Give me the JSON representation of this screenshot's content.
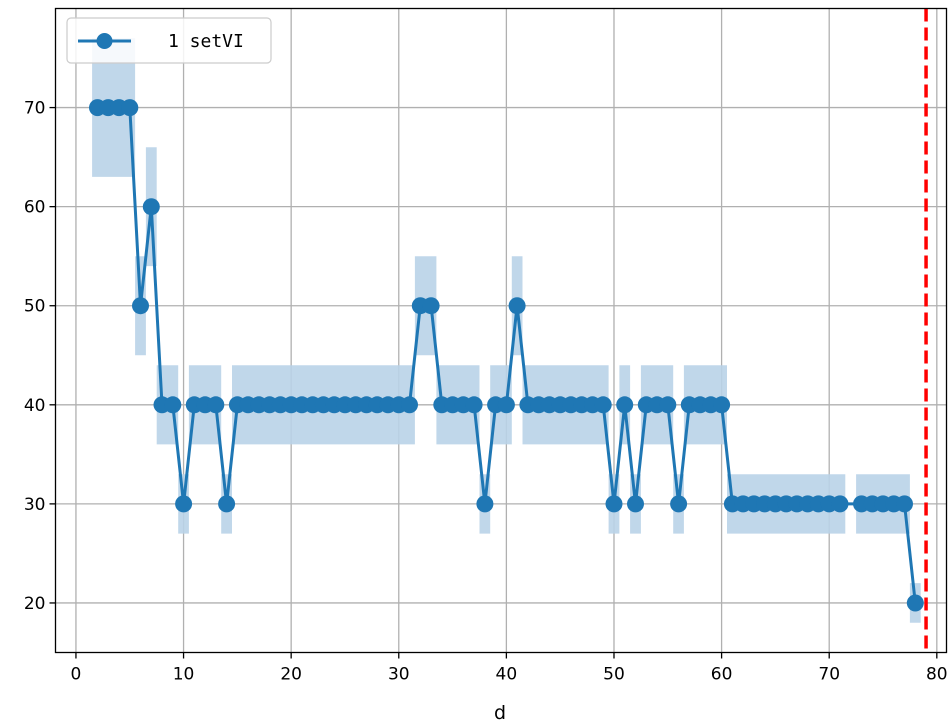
{
  "chart_data": {
    "type": "line",
    "title": "",
    "xlabel": "d",
    "ylabel": "",
    "xlim": [
      -1.9,
      80.9
    ],
    "ylim": [
      15,
      80
    ],
    "xticks": [
      0,
      10,
      20,
      30,
      40,
      50,
      60,
      70,
      80
    ],
    "yticks": [
      20,
      30,
      40,
      50,
      60,
      70
    ],
    "grid": true,
    "legend": {
      "position": "top-left",
      "entries": [
        "1 setVI"
      ]
    },
    "vline": {
      "x": 79,
      "color": "#ff0000",
      "style": "dashed"
    },
    "colors": {
      "series": "#1f77b4",
      "band": "#b9d3e8",
      "vline": "#ff0000",
      "grid": "#b0b0b0"
    },
    "series": [
      {
        "name": "1 setVI",
        "points": [
          [
            2,
            70
          ],
          [
            3,
            70
          ],
          [
            4,
            70
          ],
          [
            5,
            70
          ],
          [
            6,
            50
          ],
          [
            7,
            60
          ],
          [
            8,
            40
          ],
          [
            9,
            40
          ],
          [
            10,
            30
          ],
          [
            11,
            40
          ],
          [
            12,
            40
          ],
          [
            13,
            40
          ],
          [
            14,
            30
          ],
          [
            15,
            40
          ],
          [
            16,
            40
          ],
          [
            17,
            40
          ],
          [
            18,
            40
          ],
          [
            19,
            40
          ],
          [
            20,
            40
          ],
          [
            21,
            40
          ],
          [
            22,
            40
          ],
          [
            23,
            40
          ],
          [
            24,
            40
          ],
          [
            25,
            40
          ],
          [
            26,
            40
          ],
          [
            27,
            40
          ],
          [
            28,
            40
          ],
          [
            29,
            40
          ],
          [
            30,
            40
          ],
          [
            31,
            40
          ],
          [
            32,
            50
          ],
          [
            33,
            50
          ],
          [
            34,
            40
          ],
          [
            35,
            40
          ],
          [
            36,
            40
          ],
          [
            37,
            40
          ],
          [
            38,
            30
          ],
          [
            39,
            40
          ],
          [
            40,
            40
          ],
          [
            41,
            50
          ],
          [
            42,
            40
          ],
          [
            43,
            40
          ],
          [
            44,
            40
          ],
          [
            45,
            40
          ],
          [
            46,
            40
          ],
          [
            47,
            40
          ],
          [
            48,
            40
          ],
          [
            49,
            40
          ],
          [
            50,
            30
          ],
          [
            51,
            40
          ],
          [
            52,
            30
          ],
          [
            53,
            40
          ],
          [
            54,
            40
          ],
          [
            55,
            40
          ],
          [
            56,
            30
          ],
          [
            57,
            40
          ],
          [
            58,
            40
          ],
          [
            59,
            40
          ],
          [
            60,
            40
          ],
          [
            61,
            30
          ],
          [
            62,
            30
          ],
          [
            63,
            30
          ],
          [
            64,
            30
          ],
          [
            65,
            30
          ],
          [
            66,
            30
          ],
          [
            67,
            30
          ],
          [
            68,
            30
          ],
          [
            69,
            30
          ],
          [
            70,
            30
          ],
          [
            71,
            30
          ],
          [
            73,
            30
          ],
          [
            74,
            30
          ],
          [
            75,
            30
          ],
          [
            76,
            30
          ],
          [
            77,
            30
          ],
          [
            78,
            20
          ]
        ],
        "band": [
          [
            2,
            63,
            77
          ],
          [
            3,
            63,
            77
          ],
          [
            4,
            63,
            77
          ],
          [
            5,
            63,
            77
          ],
          [
            6,
            45,
            55
          ],
          [
            7,
            54,
            66
          ],
          [
            8,
            36,
            44
          ],
          [
            9,
            36,
            44
          ],
          [
            10,
            27,
            33
          ],
          [
            11,
            36,
            44
          ],
          [
            12,
            36,
            44
          ],
          [
            13,
            36,
            44
          ],
          [
            14,
            27,
            33
          ],
          [
            15,
            36,
            44
          ],
          [
            16,
            36,
            44
          ],
          [
            17,
            36,
            44
          ],
          [
            18,
            36,
            44
          ],
          [
            19,
            36,
            44
          ],
          [
            20,
            36,
            44
          ],
          [
            21,
            36,
            44
          ],
          [
            22,
            36,
            44
          ],
          [
            23,
            36,
            44
          ],
          [
            24,
            36,
            44
          ],
          [
            25,
            36,
            44
          ],
          [
            26,
            36,
            44
          ],
          [
            27,
            36,
            44
          ],
          [
            28,
            36,
            44
          ],
          [
            29,
            36,
            44
          ],
          [
            30,
            36,
            44
          ],
          [
            31,
            36,
            44
          ],
          [
            32,
            45,
            55
          ],
          [
            33,
            45,
            55
          ],
          [
            34,
            36,
            44
          ],
          [
            35,
            36,
            44
          ],
          [
            36,
            36,
            44
          ],
          [
            37,
            36,
            44
          ],
          [
            38,
            27,
            33
          ],
          [
            39,
            36,
            44
          ],
          [
            40,
            36,
            44
          ],
          [
            41,
            45,
            55
          ],
          [
            42,
            36,
            44
          ],
          [
            43,
            36,
            44
          ],
          [
            44,
            36,
            44
          ],
          [
            45,
            36,
            44
          ],
          [
            46,
            36,
            44
          ],
          [
            47,
            36,
            44
          ],
          [
            48,
            36,
            44
          ],
          [
            49,
            36,
            44
          ],
          [
            50,
            27,
            33
          ],
          [
            51,
            36,
            44
          ],
          [
            52,
            27,
            33
          ],
          [
            53,
            36,
            44
          ],
          [
            54,
            36,
            44
          ],
          [
            55,
            36,
            44
          ],
          [
            56,
            27,
            33
          ],
          [
            57,
            36,
            44
          ],
          [
            58,
            36,
            44
          ],
          [
            59,
            36,
            44
          ],
          [
            60,
            36,
            44
          ],
          [
            61,
            27,
            33
          ],
          [
            62,
            27,
            33
          ],
          [
            63,
            27,
            33
          ],
          [
            64,
            27,
            33
          ],
          [
            65,
            27,
            33
          ],
          [
            66,
            27,
            33
          ],
          [
            67,
            27,
            33
          ],
          [
            68,
            27,
            33
          ],
          [
            69,
            27,
            33
          ],
          [
            70,
            27,
            33
          ],
          [
            71,
            27,
            33
          ],
          [
            73,
            27,
            33
          ],
          [
            74,
            27,
            33
          ],
          [
            75,
            27,
            33
          ],
          [
            76,
            27,
            33
          ],
          [
            77,
            27,
            33
          ],
          [
            78,
            18,
            22
          ]
        ]
      }
    ]
  }
}
